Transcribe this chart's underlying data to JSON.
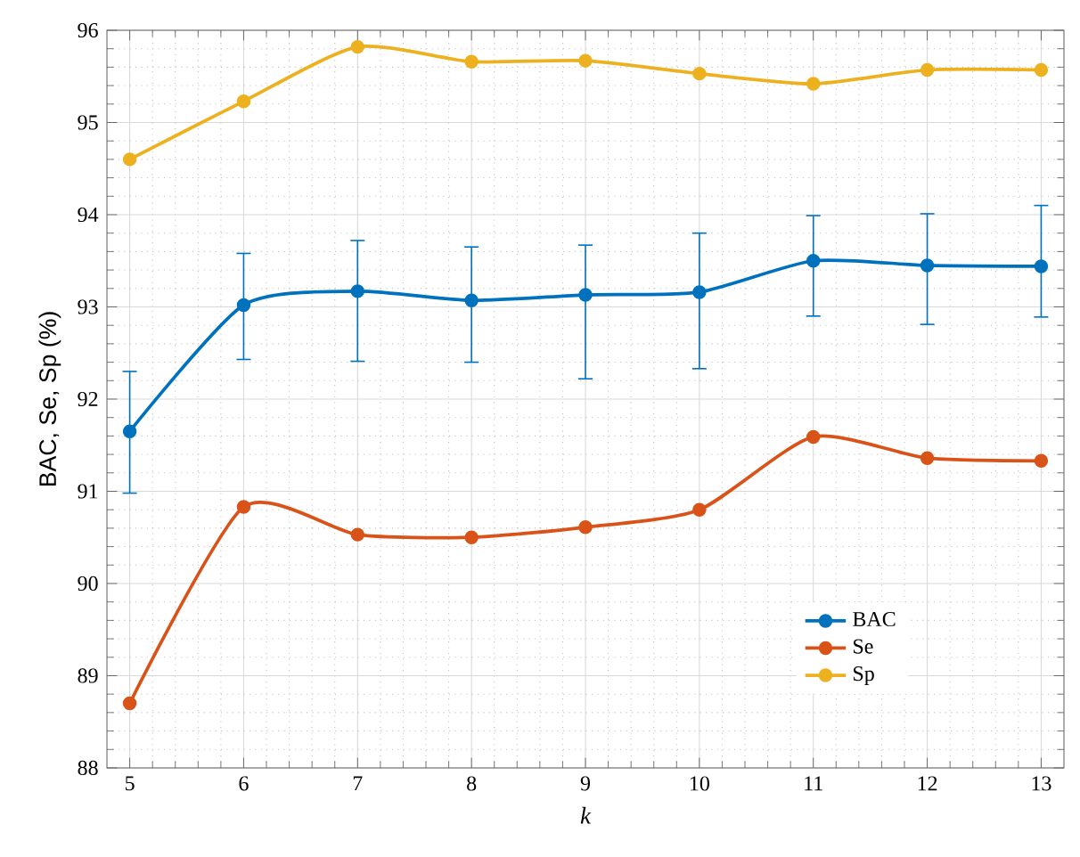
{
  "chart_data": {
    "type": "line",
    "xlabel": "k",
    "ylabel": "BAC, Se, Sp (%)",
    "x": [
      5,
      6,
      7,
      8,
      9,
      10,
      11,
      12,
      13
    ],
    "xlim": [
      4.8,
      13.2
    ],
    "xticks": [
      5,
      6,
      7,
      8,
      9,
      10,
      11,
      12,
      13
    ],
    "ylim": [
      88,
      96
    ],
    "yticks": [
      88,
      89,
      90,
      91,
      92,
      93,
      94,
      95,
      96
    ],
    "grid": true,
    "legend": "bottom right",
    "marker": "circle",
    "line_style": "solid",
    "series": [
      {
        "name": "BAC",
        "color": "#0072bd",
        "values": [
          91.65,
          93.02,
          93.17,
          93.07,
          93.13,
          93.16,
          93.5,
          93.45,
          93.44
        ],
        "errors": [
          [
            90.98,
            92.3
          ],
          [
            92.43,
            93.58
          ],
          [
            92.41,
            93.72
          ],
          [
            92.4,
            93.65
          ],
          [
            92.22,
            93.67
          ],
          [
            92.33,
            93.8
          ],
          [
            92.9,
            93.99
          ],
          [
            92.81,
            94.01
          ],
          [
            92.89,
            94.1
          ]
        ]
      },
      {
        "name": "Se",
        "color": "#d95319",
        "values": [
          88.7,
          90.83,
          90.53,
          90.5,
          90.61,
          90.8,
          91.59,
          91.36,
          91.33
        ]
      },
      {
        "name": "Sp",
        "color": "#edb120",
        "values": [
          94.6,
          95.23,
          95.82,
          95.66,
          95.67,
          95.53,
          95.42,
          95.57,
          95.57
        ]
      }
    ]
  }
}
